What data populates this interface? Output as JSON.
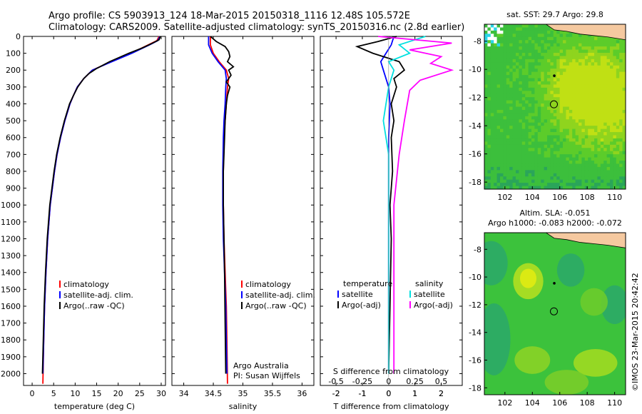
{
  "header": {
    "line1": "Argo profile: CS 5903913_124 18-Mar-2015 20150318_1116 12.48S 105.572E",
    "line2": "Climatology: CARS2009. Satellite-adjusted climatology: synTS_20150316.nc (2.8d earlier)"
  },
  "credit": "©IMOS 23-Mar-2015 20:42:42",
  "colors": {
    "climatology": "#ff0000",
    "satellite": "#0000ff",
    "argo": "#000000",
    "sal_satellite": "#00e0e0",
    "sal_argo": "#ff00ff",
    "land": "#f5c9a0",
    "ocean_base": "#3cc23c"
  },
  "chart_data": [
    {
      "type": "line",
      "panel": "temperature",
      "xlabel": "temperature (deg C)",
      "ylabel": "",
      "xlim": [
        -2,
        31
      ],
      "ylim": [
        2070,
        0
      ],
      "xticks": [
        0,
        5,
        10,
        15,
        20,
        25,
        30
      ],
      "yticks": [
        0,
        100,
        200,
        300,
        400,
        500,
        600,
        700,
        800,
        900,
        1000,
        1100,
        1200,
        1300,
        1400,
        1500,
        1600,
        1700,
        1800,
        1900,
        2000
      ],
      "legend": [
        "climatology",
        "satellite-adj. clim.",
        "Argo(..raw -QC)"
      ],
      "legend_position": "lower-center",
      "series": [
        {
          "name": "climatology",
          "color": "#ff0000",
          "x": [
            29.5,
            29.0,
            27.0,
            23.0,
            17.5,
            14.0,
            12.0,
            10.5,
            9.6,
            8.8,
            7.6,
            6.6,
            5.8,
            5.2,
            4.7,
            4.2,
            3.6,
            3.2,
            2.9,
            2.7,
            2.5
          ],
          "y": [
            0,
            25,
            50,
            100,
            160,
            200,
            250,
            300,
            350,
            400,
            500,
            600,
            700,
            800,
            900,
            1000,
            1200,
            1400,
            1600,
            1800,
            2060
          ]
        },
        {
          "name": "satellite-adj. clim.",
          "color": "#0000ff",
          "x": [
            29.7,
            29.2,
            27.3,
            23.2,
            17.6,
            14.0,
            12.0,
            10.5,
            9.6,
            8.8,
            7.6,
            6.6,
            5.8,
            5.2,
            4.7,
            4.2,
            3.6,
            3.2,
            2.9,
            2.7,
            2.5
          ],
          "y": [
            0,
            25,
            50,
            100,
            160,
            200,
            250,
            300,
            350,
            400,
            500,
            600,
            700,
            800,
            900,
            1000,
            1200,
            1400,
            1600,
            1800,
            2000
          ]
        },
        {
          "name": "Argo(..raw -QC)",
          "color": "#000000",
          "x": [
            29.8,
            29.5,
            28.0,
            25.5,
            22.5,
            18.0,
            15.0,
            13.2,
            12.0,
            10.6,
            9.6,
            8.7,
            7.5,
            6.5,
            5.7,
            5.1,
            4.6,
            4.1,
            3.5,
            3.1,
            2.8,
            2.6,
            2.4
          ],
          "y": [
            0,
            20,
            40,
            70,
            100,
            150,
            190,
            220,
            250,
            300,
            350,
            400,
            500,
            600,
            700,
            800,
            900,
            1000,
            1200,
            1400,
            1600,
            1800,
            2000
          ]
        }
      ]
    },
    {
      "type": "line",
      "panel": "salinity",
      "xlabel": "salinity",
      "ylabel": "",
      "xlim": [
        33.8,
        36.2
      ],
      "ylim": [
        2070,
        0
      ],
      "xticks": [
        34,
        34.5,
        35,
        35.5,
        36
      ],
      "legend": [
        "climatology",
        "satellite-adj. clim.",
        "Argo(..raw -QC)"
      ],
      "legend_position": "lower-center",
      "annotation": [
        "Argo Australia",
        "PI: Susan Wijffels"
      ],
      "series": [
        {
          "name": "climatology",
          "color": "#ff0000",
          "x": [
            34.45,
            34.45,
            34.5,
            34.6,
            34.72,
            34.76,
            34.74,
            34.72,
            34.7,
            34.68,
            34.67,
            34.67,
            34.68,
            34.7,
            34.72,
            34.73,
            34.74
          ],
          "y": [
            0,
            50,
            100,
            150,
            200,
            250,
            300,
            400,
            500,
            600,
            800,
            1000,
            1200,
            1400,
            1600,
            1800,
            2060
          ]
        },
        {
          "name": "satellite-adj. clim.",
          "color": "#0000ff",
          "x": [
            34.42,
            34.42,
            34.48,
            34.58,
            34.7,
            34.72,
            34.71,
            34.7,
            34.68,
            34.67,
            34.66,
            34.66,
            34.67,
            34.69,
            34.71,
            34.72,
            34.73
          ],
          "y": [
            0,
            50,
            100,
            150,
            200,
            250,
            300,
            400,
            500,
            600,
            800,
            1000,
            1200,
            1400,
            1600,
            1800,
            2000
          ]
        },
        {
          "name": "Argo(..raw -QC)",
          "color": "#000000",
          "x": [
            34.45,
            34.55,
            34.7,
            34.76,
            34.78,
            34.74,
            34.84,
            34.76,
            34.8,
            34.72,
            34.78,
            34.74,
            34.72,
            34.7,
            34.69,
            34.68,
            34.67,
            34.67,
            34.68,
            34.69,
            34.7,
            34.71
          ],
          "y": [
            0,
            30,
            60,
            90,
            120,
            150,
            180,
            200,
            230,
            270,
            300,
            350,
            400,
            500,
            600,
            700,
            800,
            1000,
            1200,
            1400,
            1700,
            2000
          ]
        }
      ]
    },
    {
      "type": "line",
      "panel": "difference",
      "xlabel": "T difference from climatology",
      "xlabel_top": "S difference from climatology",
      "xlim": [
        -2.6,
        2.8
      ],
      "ylim": [
        2070,
        0
      ],
      "xticks": [
        -2,
        -1,
        0,
        1,
        2
      ],
      "xticks_s": [
        "-0.5",
        "-0.25",
        "0",
        "0.25",
        "0.5"
      ],
      "legend_temperature": {
        "title": "temperature",
        "items": [
          "satellite",
          "Argo(-adj)"
        ]
      },
      "legend_salinity": {
        "title": "salinity",
        "items": [
          "satellite",
          "Argo(-adj)"
        ]
      },
      "series": [
        {
          "name": "satellite",
          "group": "temperature",
          "color": "#0000ff",
          "x": [
            0.2,
            0.1,
            -0.1,
            -0.3,
            -0.2,
            0.0,
            0.05,
            0.0,
            0.0,
            0.0,
            0.0,
            0.0
          ],
          "y": [
            0,
            50,
            100,
            150,
            200,
            300,
            400,
            600,
            900,
            1200,
            1600,
            2000
          ]
        },
        {
          "name": "Argo(-adj)",
          "group": "temperature",
          "color": "#000000",
          "x": [
            0.3,
            -0.4,
            -1.2,
            -0.6,
            0.4,
            0.6,
            0.2,
            0.3,
            0.1,
            0.2,
            0.1,
            0.15,
            0.05,
            0.1,
            0.05,
            0.0
          ],
          "y": [
            0,
            30,
            60,
            100,
            150,
            200,
            250,
            300,
            400,
            500,
            600,
            800,
            1000,
            1200,
            1600,
            2000
          ]
        },
        {
          "name": "satellite",
          "group": "salinity",
          "color": "#00e0e0",
          "x": [
            0.35,
            0.1,
            0.2,
            0.0,
            0.05,
            0.0,
            -0.05,
            0.0,
            0.0,
            0.0,
            0.0
          ],
          "y": [
            0,
            50,
            100,
            150,
            200,
            300,
            500,
            700,
            1000,
            1500,
            2000
          ]
        },
        {
          "name": "Argo(-adj)",
          "group": "salinity",
          "color": "#ff00ff",
          "x": [
            -0.1,
            0.6,
            0.2,
            0.5,
            0.4,
            0.6,
            0.3,
            0.2,
            0.15,
            0.1,
            0.05,
            0.05
          ],
          "y": [
            0,
            40,
            80,
            120,
            160,
            200,
            260,
            320,
            500,
            700,
            1000,
            2000
          ]
        }
      ]
    },
    {
      "type": "heatmap",
      "panel": "sst_map",
      "title": "sat. SST: 29.7  Argo: 29.8",
      "xlim": [
        100.5,
        110.8
      ],
      "ylim": [
        -18.5,
        -6.8
      ],
      "xticks": [
        102,
        104,
        106,
        108,
        110
      ],
      "yticks": [
        -8,
        -10,
        -12,
        -14,
        -16,
        -18
      ],
      "argo_position": [
        105.572,
        -12.48
      ],
      "marker": [
        105.6,
        -10.45
      ]
    },
    {
      "type": "heatmap",
      "panel": "sla_map",
      "title": "Altim. SLA: -0.051",
      "subtitle": "Argo h1000: -0.083 h2000: -0.072",
      "xlim": [
        100.5,
        110.8
      ],
      "ylim": [
        -18.5,
        -6.8
      ],
      "xticks": [
        102,
        104,
        106,
        108,
        110
      ],
      "yticks": [
        -8,
        -10,
        -12,
        -14,
        -16,
        -18
      ],
      "argo_position": [
        105.572,
        -12.48
      ],
      "marker": [
        105.6,
        -10.45
      ]
    }
  ]
}
